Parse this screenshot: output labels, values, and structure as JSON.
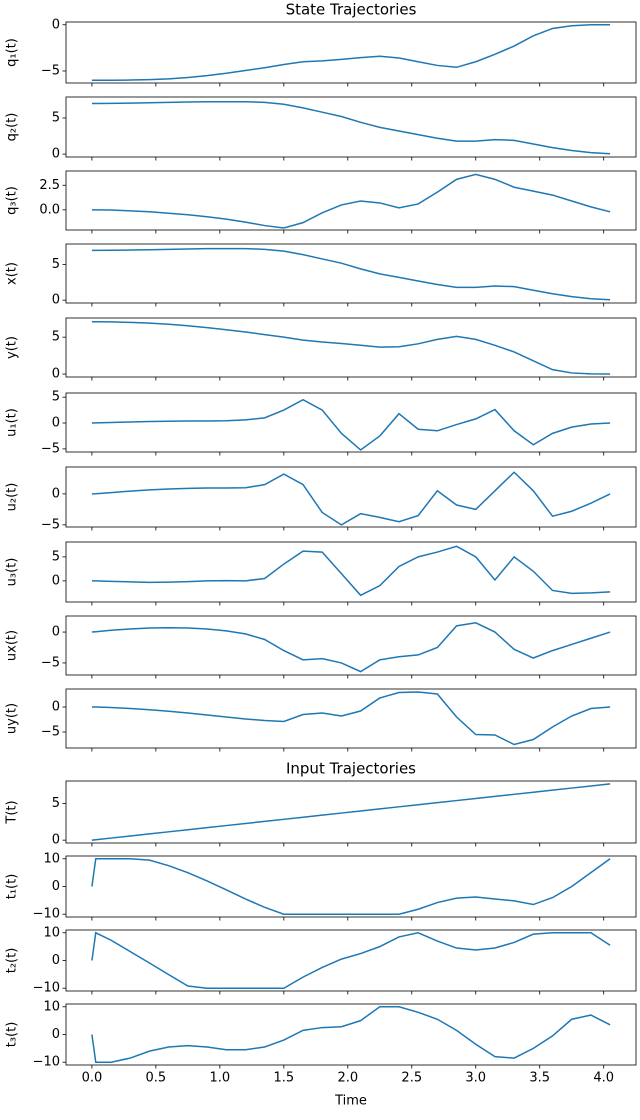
{
  "chart_data": [
    {
      "type": "line",
      "title": "State Trajectories",
      "ylabel": "q₁(t)",
      "color": "#1f77b4",
      "x": [
        0,
        0.03,
        0.15,
        0.3,
        0.45,
        0.6,
        0.75,
        0.9,
        1.05,
        1.2,
        1.35,
        1.5,
        1.65,
        1.8,
        1.95,
        2.1,
        2.25,
        2.4,
        2.55,
        2.7,
        2.85,
        3.0,
        3.15,
        3.3,
        3.45,
        3.6,
        3.75,
        3.9,
        4.05
      ],
      "values": [
        -6.0,
        -6.0,
        -6.0,
        -5.98,
        -5.93,
        -5.85,
        -5.7,
        -5.5,
        -5.25,
        -4.95,
        -4.65,
        -4.3,
        -4.0,
        -3.9,
        -3.75,
        -3.55,
        -3.4,
        -3.6,
        -4.0,
        -4.4,
        -4.6,
        -4.0,
        -3.2,
        -2.3,
        -1.2,
        -0.4,
        -0.1,
        0,
        0
      ],
      "xlim": [
        -0.2025,
        4.2525
      ],
      "xticks": [
        0,
        0.5,
        1,
        1.5,
        2,
        2.5,
        3,
        3.5,
        4
      ],
      "ylim": [
        -6.3,
        0.3
      ],
      "yticks": [
        {
          "value": -5,
          "label": "−5"
        },
        0
      ]
    },
    {
      "type": "line",
      "ylabel": "q₂(t)",
      "color": "#1f77b4",
      "x": [
        0,
        0.03,
        0.15,
        0.3,
        0.45,
        0.6,
        0.75,
        0.9,
        1.05,
        1.2,
        1.35,
        1.5,
        1.65,
        1.8,
        1.95,
        2.1,
        2.25,
        2.4,
        2.55,
        2.7,
        2.85,
        3.0,
        3.15,
        3.3,
        3.45,
        3.6,
        3.75,
        3.9,
        4.05
      ],
      "values": [
        7.0,
        7.0,
        7.02,
        7.05,
        7.1,
        7.15,
        7.2,
        7.25,
        7.25,
        7.25,
        7.15,
        6.9,
        6.4,
        5.8,
        5.2,
        4.4,
        3.7,
        3.2,
        2.7,
        2.2,
        1.8,
        1.8,
        2.0,
        1.9,
        1.4,
        0.9,
        0.5,
        0.2,
        0.05
      ],
      "xlim": [
        -0.2025,
        4.2525
      ],
      "xticks": [
        0,
        0.5,
        1,
        1.5,
        2,
        2.5,
        3,
        3.5,
        4
      ],
      "ylim": [
        -0.4,
        7.9
      ],
      "yticks": [
        0,
        5
      ]
    },
    {
      "type": "line",
      "ylabel": "q₃(t)",
      "color": "#1f77b4",
      "x": [
        0,
        0.03,
        0.15,
        0.3,
        0.45,
        0.6,
        0.75,
        0.9,
        1.05,
        1.2,
        1.35,
        1.5,
        1.65,
        1.8,
        1.95,
        2.1,
        2.25,
        2.4,
        2.55,
        2.7,
        2.85,
        3.0,
        3.15,
        3.3,
        3.45,
        3.6,
        3.75,
        3.9,
        4.05
      ],
      "values": [
        0,
        0,
        -0.02,
        -0.1,
        -0.2,
        -0.35,
        -0.5,
        -0.7,
        -0.95,
        -1.25,
        -1.6,
        -1.85,
        -1.3,
        -0.3,
        0.5,
        0.9,
        0.7,
        0.2,
        0.6,
        1.8,
        3.1,
        3.6,
        3.1,
        2.3,
        1.9,
        1.5,
        0.9,
        0.3,
        -0.2
      ],
      "xlim": [
        -0.2025,
        4.2525
      ],
      "xticks": [
        0,
        0.5,
        1,
        1.5,
        2,
        2.5,
        3,
        3.5,
        4
      ],
      "ylim": [
        -2.05,
        3.95
      ],
      "yticks": [
        {
          "value": 0,
          "label": "0.0"
        },
        2.5
      ]
    },
    {
      "type": "line",
      "ylabel": "x(t)",
      "color": "#1f77b4",
      "x": [
        0,
        0.03,
        0.15,
        0.3,
        0.45,
        0.6,
        0.75,
        0.9,
        1.05,
        1.2,
        1.35,
        1.5,
        1.65,
        1.8,
        1.95,
        2.1,
        2.25,
        2.4,
        2.55,
        2.7,
        2.85,
        3.0,
        3.15,
        3.3,
        3.45,
        3.6,
        3.75,
        3.9,
        4.05
      ],
      "values": [
        7.0,
        7.0,
        7.02,
        7.05,
        7.1,
        7.15,
        7.2,
        7.25,
        7.25,
        7.25,
        7.15,
        6.9,
        6.4,
        5.8,
        5.2,
        4.4,
        3.7,
        3.2,
        2.7,
        2.2,
        1.8,
        1.8,
        2.0,
        1.9,
        1.4,
        0.9,
        0.5,
        0.2,
        0.05
      ],
      "xlim": [
        -0.2025,
        4.2525
      ],
      "xticks": [
        0,
        0.5,
        1,
        1.5,
        2,
        2.5,
        3,
        3.5,
        4
      ],
      "ylim": [
        -0.4,
        7.9
      ],
      "yticks": [
        0,
        5
      ]
    },
    {
      "type": "line",
      "ylabel": "y(t)",
      "color": "#1f77b4",
      "x": [
        0,
        0.03,
        0.15,
        0.3,
        0.45,
        0.6,
        0.75,
        0.9,
        1.05,
        1.2,
        1.35,
        1.5,
        1.65,
        1.8,
        1.95,
        2.1,
        2.25,
        2.4,
        2.55,
        2.7,
        2.85,
        3.0,
        3.15,
        3.3,
        3.45,
        3.6,
        3.75,
        3.9,
        4.05
      ],
      "values": [
        7.1,
        7.1,
        7.08,
        7.0,
        6.9,
        6.75,
        6.55,
        6.3,
        6.0,
        5.7,
        5.35,
        5.0,
        4.6,
        4.35,
        4.15,
        3.9,
        3.65,
        3.7,
        4.1,
        4.7,
        5.1,
        4.7,
        3.9,
        3.0,
        1.8,
        0.6,
        0.15,
        0.02,
        0
      ],
      "xlim": [
        -0.2025,
        4.2525
      ],
      "xticks": [
        0,
        0.5,
        1,
        1.5,
        2,
        2.5,
        3,
        3.5,
        4
      ],
      "ylim": [
        -0.4,
        7.6
      ],
      "yticks": [
        0,
        5
      ]
    },
    {
      "type": "line",
      "ylabel": "u₁(t)",
      "color": "#1f77b4",
      "x": [
        0,
        0.03,
        0.15,
        0.3,
        0.45,
        0.6,
        0.75,
        0.9,
        1.05,
        1.2,
        1.35,
        1.5,
        1.65,
        1.8,
        1.95,
        2.1,
        2.25,
        2.4,
        2.55,
        2.7,
        2.85,
        3.0,
        3.15,
        3.3,
        3.45,
        3.6,
        3.75,
        3.9,
        4.05
      ],
      "values": [
        0,
        0.02,
        0.1,
        0.2,
        0.3,
        0.35,
        0.4,
        0.4,
        0.45,
        0.6,
        1.0,
        2.5,
        4.5,
        2.5,
        -2.0,
        -5.2,
        -2.5,
        1.8,
        -1.2,
        -1.5,
        -0.3,
        0.8,
        2.6,
        -1.5,
        -4.2,
        -2.0,
        -0.8,
        -0.2,
        0
      ],
      "xlim": [
        -0.2025,
        4.2525
      ],
      "xticks": [
        0,
        0.5,
        1,
        1.5,
        2,
        2.5,
        3,
        3.5,
        4
      ],
      "ylim": [
        -5.6,
        5.8
      ],
      "yticks": [
        {
          "value": -5,
          "label": "−5"
        },
        0,
        5
      ]
    },
    {
      "type": "line",
      "ylabel": "u₂(t)",
      "color": "#1f77b4",
      "x": [
        0,
        0.03,
        0.15,
        0.3,
        0.45,
        0.6,
        0.75,
        0.9,
        1.05,
        1.2,
        1.35,
        1.5,
        1.65,
        1.8,
        1.95,
        2.1,
        2.25,
        2.4,
        2.55,
        2.7,
        2.85,
        3.0,
        3.15,
        3.3,
        3.45,
        3.6,
        3.75,
        3.9,
        4.05
      ],
      "values": [
        0,
        0.02,
        0.2,
        0.45,
        0.65,
        0.8,
        0.9,
        0.95,
        0.95,
        1.0,
        1.5,
        3.2,
        1.5,
        -3.0,
        -5.0,
        -3.2,
        -3.8,
        -4.5,
        -3.5,
        0.5,
        -1.8,
        -2.5,
        0.5,
        3.5,
        0.5,
        -3.6,
        -2.8,
        -1.5,
        0
      ],
      "xlim": [
        -0.2025,
        4.2525
      ],
      "xticks": [
        0,
        0.5,
        1,
        1.5,
        2,
        2.5,
        3,
        3.5,
        4
      ],
      "ylim": [
        -5.35,
        4.35
      ],
      "yticks": [
        {
          "value": -5,
          "label": "−5"
        },
        0
      ]
    },
    {
      "type": "line",
      "ylabel": "u₃(t)",
      "color": "#1f77b4",
      "x": [
        0,
        0.03,
        0.15,
        0.3,
        0.45,
        0.6,
        0.75,
        0.9,
        1.05,
        1.2,
        1.35,
        1.5,
        1.65,
        1.8,
        1.95,
        2.1,
        2.25,
        2.4,
        2.55,
        2.7,
        2.85,
        3.0,
        3.15,
        3.3,
        3.45,
        3.6,
        3.75,
        3.9,
        4.05
      ],
      "values": [
        0,
        0,
        -0.1,
        -0.2,
        -0.3,
        -0.25,
        -0.15,
        0,
        0.05,
        0,
        0.5,
        3.5,
        6.2,
        6.0,
        1.5,
        -3.0,
        -1.0,
        3.0,
        5.0,
        6.0,
        7.2,
        5.0,
        0.2,
        5.0,
        2.0,
        -2.0,
        -2.6,
        -2.5,
        -2.3
      ],
      "xlim": [
        -0.2025,
        4.2525
      ],
      "xticks": [
        0,
        0.5,
        1,
        1.5,
        2,
        2.5,
        3,
        3.5,
        4
      ],
      "ylim": [
        -4.4,
        8.1
      ],
      "yticks": [
        0,
        5
      ]
    },
    {
      "type": "line",
      "ylabel": "ux(t)",
      "color": "#1f77b4",
      "x": [
        0,
        0.03,
        0.15,
        0.3,
        0.45,
        0.6,
        0.75,
        0.9,
        1.05,
        1.2,
        1.35,
        1.5,
        1.65,
        1.8,
        1.95,
        2.1,
        2.25,
        2.4,
        2.55,
        2.7,
        2.85,
        3.0,
        3.15,
        3.3,
        3.45,
        3.6,
        3.75,
        3.9,
        4.05
      ],
      "values": [
        0,
        0.05,
        0.3,
        0.5,
        0.65,
        0.7,
        0.65,
        0.5,
        0.2,
        -0.3,
        -1.2,
        -3.0,
        -4.5,
        -4.3,
        -5.0,
        -6.4,
        -4.5,
        -4.0,
        -3.7,
        -2.5,
        1.0,
        1.5,
        0,
        -2.8,
        -4.2,
        -3.0,
        -2.0,
        -1.0,
        0
      ],
      "xlim": [
        -0.2025,
        4.2525
      ],
      "xticks": [
        0,
        0.5,
        1,
        1.5,
        2,
        2.5,
        3,
        3.5,
        4
      ],
      "ylim": [
        -6.95,
        2.6
      ],
      "yticks": [
        {
          "value": -5,
          "label": "−5"
        },
        0
      ]
    },
    {
      "type": "line",
      "ylabel": "uy(t)",
      "color": "#1f77b4",
      "x": [
        0,
        0.03,
        0.15,
        0.3,
        0.45,
        0.6,
        0.75,
        0.9,
        1.05,
        1.2,
        1.35,
        1.5,
        1.65,
        1.8,
        1.95,
        2.1,
        2.25,
        2.4,
        2.55,
        2.7,
        2.85,
        3.0,
        3.15,
        3.3,
        3.45,
        3.6,
        3.75,
        3.9,
        4.05
      ],
      "values": [
        0,
        0,
        -0.1,
        -0.3,
        -0.55,
        -0.85,
        -1.2,
        -1.6,
        -2.0,
        -2.4,
        -2.7,
        -2.9,
        -1.5,
        -1.2,
        -1.8,
        -0.8,
        1.8,
        2.9,
        3.0,
        2.6,
        -2.0,
        -5.5,
        -5.6,
        -7.5,
        -6.5,
        -4.0,
        -1.8,
        -0.3,
        0
      ],
      "xlim": [
        -0.2025,
        4.2525
      ],
      "xticks": [
        0,
        0.5,
        1,
        1.5,
        2,
        2.5,
        3,
        3.5,
        4
      ],
      "ylim": [
        -8.2,
        3.6
      ],
      "yticks": [
        {
          "value": -5,
          "label": "−5"
        },
        0
      ]
    },
    {
      "type": "line",
      "title": "Input Trajectories",
      "ylabel": "T(t)",
      "color": "#1f77b4",
      "x": [
        0,
        0.03,
        0.15,
        0.3,
        0.45,
        0.6,
        0.75,
        0.9,
        1.05,
        1.2,
        1.35,
        1.5,
        1.65,
        1.8,
        1.95,
        2.1,
        2.25,
        2.4,
        2.55,
        2.7,
        2.85,
        3.0,
        3.15,
        3.3,
        3.45,
        3.6,
        3.75,
        3.9,
        4.05
      ],
      "values": [
        0,
        0.057,
        0.285,
        0.57,
        0.855,
        1.14,
        1.425,
        1.71,
        1.995,
        2.28,
        2.565,
        2.85,
        3.135,
        3.42,
        3.705,
        3.99,
        4.275,
        4.56,
        4.845,
        5.13,
        5.415,
        5.7,
        5.985,
        6.27,
        6.555,
        6.84,
        7.125,
        7.41,
        7.695
      ],
      "xlim": [
        -0.2025,
        4.2525
      ],
      "xticks": [
        0,
        0.5,
        1,
        1.5,
        2,
        2.5,
        3,
        3.5,
        4
      ],
      "ylim": [
        -0.39,
        8.09
      ],
      "yticks": [
        0,
        5
      ]
    },
    {
      "type": "line",
      "ylabel": "t₁(t)",
      "color": "#1f77b4",
      "x": [
        0,
        0.03,
        0.15,
        0.3,
        0.45,
        0.6,
        0.75,
        0.9,
        1.05,
        1.2,
        1.35,
        1.5,
        1.65,
        1.8,
        1.95,
        2.1,
        2.25,
        2.4,
        2.55,
        2.7,
        2.85,
        3.0,
        3.15,
        3.3,
        3.45,
        3.6,
        3.75,
        3.9,
        4.05
      ],
      "values": [
        0,
        10,
        10,
        10,
        9.5,
        7.5,
        5,
        2,
        -1.2,
        -4.5,
        -7.5,
        -10,
        -10,
        -10,
        -10,
        -10,
        -10,
        -10,
        -8.2,
        -5.8,
        -4.2,
        -3.8,
        -4.5,
        -5.2,
        -6.5,
        -4,
        0,
        5,
        10
      ],
      "xlim": [
        -0.2025,
        4.2525
      ],
      "xticks": [
        0,
        0.5,
        1,
        1.5,
        2,
        2.5,
        3,
        3.5,
        4
      ],
      "ylim": [
        -11,
        11
      ],
      "yticks": [
        {
          "value": -10,
          "label": "−10"
        },
        0,
        10
      ]
    },
    {
      "type": "line",
      "ylabel": "t₂(t)",
      "color": "#1f77b4",
      "x": [
        0,
        0.03,
        0.15,
        0.3,
        0.45,
        0.6,
        0.75,
        0.9,
        1.05,
        1.2,
        1.35,
        1.5,
        1.65,
        1.8,
        1.95,
        2.1,
        2.25,
        2.4,
        2.55,
        2.7,
        2.85,
        3.0,
        3.15,
        3.3,
        3.45,
        3.6,
        3.75,
        3.9,
        4.05
      ],
      "values": [
        0,
        10,
        7.3,
        3.2,
        -0.9,
        -5.1,
        -9.2,
        -10,
        -10,
        -10,
        -10,
        -10,
        -6,
        -2.5,
        0.5,
        2.5,
        5,
        8.5,
        10,
        7,
        4.5,
        3.8,
        4.5,
        6.5,
        9.5,
        10,
        10,
        10,
        5.5
      ],
      "xlim": [
        -0.2025,
        4.2525
      ],
      "xticks": [
        0,
        0.5,
        1,
        1.5,
        2,
        2.5,
        3,
        3.5,
        4
      ],
      "ylim": [
        -11,
        11
      ],
      "yticks": [
        {
          "value": -10,
          "label": "−10"
        },
        0,
        10
      ]
    },
    {
      "type": "line",
      "ylabel": "t₃(t)",
      "xlabel": "Time",
      "color": "#1f77b4",
      "x": [
        0,
        0.03,
        0.15,
        0.3,
        0.45,
        0.6,
        0.75,
        0.9,
        1.05,
        1.2,
        1.35,
        1.5,
        1.65,
        1.8,
        1.95,
        2.1,
        2.25,
        2.4,
        2.55,
        2.7,
        2.85,
        3.0,
        3.15,
        3.3,
        3.45,
        3.6,
        3.75,
        3.9,
        4.05
      ],
      "values": [
        0,
        -10,
        -10,
        -8.5,
        -6,
        -4.5,
        -4,
        -4.5,
        -5.5,
        -5.5,
        -4.5,
        -2,
        1.5,
        2.5,
        2.8,
        5,
        10,
        10,
        8,
        5.5,
        1.5,
        -3.5,
        -8,
        -8.5,
        -5,
        -0.5,
        5.5,
        7,
        3.5
      ],
      "xlim": [
        -0.2025,
        4.2525
      ],
      "xticks": [
        {
          "value": 0,
          "label": "0.0"
        },
        0.5,
        {
          "value": 1,
          "label": "1.0"
        },
        1.5,
        {
          "value": 2,
          "label": "2.0"
        },
        2.5,
        {
          "value": 3,
          "label": "3.0"
        },
        3.5,
        {
          "value": 4,
          "label": "4.0"
        }
      ],
      "ylim": [
        -11,
        11
      ],
      "yticks": [
        {
          "value": -10,
          "label": "−10"
        },
        0,
        10
      ]
    }
  ]
}
